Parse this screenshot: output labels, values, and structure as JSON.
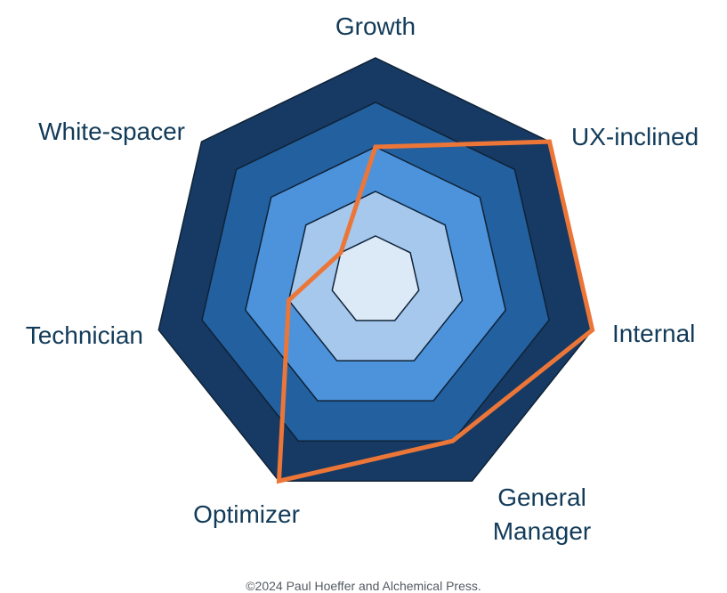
{
  "chart_data": {
    "type": "radar",
    "axes": [
      "Growth",
      "UX-inclined",
      "Internal",
      "General Manager",
      "Optimizer",
      "Technician",
      "White-spacer"
    ],
    "axis_labels": [
      {
        "lines": [
          "Growth"
        ]
      },
      {
        "lines": [
          "UX-inclined"
        ]
      },
      {
        "lines": [
          "Internal"
        ]
      },
      {
        "lines": [
          "General",
          "Manager"
        ]
      },
      {
        "lines": [
          "Optimizer"
        ]
      },
      {
        "lines": [
          "Technician"
        ]
      },
      {
        "lines": [
          "White-spacer"
        ]
      }
    ],
    "rmax": 5,
    "ring_values": [
      5,
      4,
      3,
      2,
      1
    ],
    "ring_colors": [
      "#163a63",
      "#23609f",
      "#4c93db",
      "#a6c8ec",
      "#dce9f7"
    ],
    "ring_stroke": "#0f2237",
    "series": [
      {
        "values": [
          3,
          5,
          5,
          4,
          5,
          2,
          1
        ],
        "color": "#ec7638"
      }
    ],
    "grid": false,
    "legend": "none"
  },
  "footer": {
    "copyright": "©2024 Paul Hoeffer and Alchemical Press."
  }
}
